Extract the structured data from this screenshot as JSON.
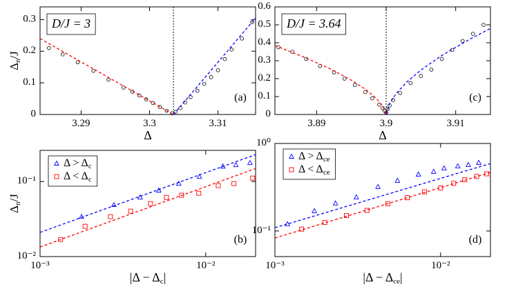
{
  "chart_data": [
    {
      "type": "scatter",
      "panel_label": "(a)",
      "annotation": "D/J = 3",
      "x_label": "Δ",
      "y_label": "Δn/J",
      "xscale": "linear",
      "yscale": "linear",
      "xlim": [
        3.284,
        3.3155
      ],
      "ylim": [
        0,
        0.34
      ],
      "xticks": [
        3.29,
        3.3,
        3.31
      ],
      "yticks": [
        0,
        0.1,
        0.2,
        0.3
      ],
      "vline": 3.3035,
      "series": [
        {
          "type": "scatter",
          "marker": "circle",
          "color": "#000000",
          "x": [
            3.2853,
            3.2873,
            3.2895,
            3.2918,
            3.294,
            3.2962,
            3.2975,
            3.2985,
            3.2995,
            3.3005,
            3.3015,
            3.3025,
            3.3033,
            3.3038,
            3.3045,
            3.3052,
            3.306,
            3.307,
            3.308,
            3.309,
            3.31,
            3.311,
            3.312,
            3.3135,
            3.315
          ],
          "values": [
            0.21,
            0.19,
            0.165,
            0.138,
            0.11,
            0.085,
            0.072,
            0.06,
            0.048,
            0.036,
            0.024,
            0.012,
            0.004,
            0.008,
            0.02,
            0.038,
            0.055,
            0.075,
            0.097,
            0.118,
            0.14,
            0.175,
            0.205,
            0.24,
            0.292
          ]
        },
        {
          "type": "line",
          "line_style": "dashed",
          "color": "#ff0000",
          "x": [
            3.284,
            3.3035
          ],
          "values": [
            0.24,
            0
          ]
        },
        {
          "type": "line",
          "line_style": "dashed",
          "color": "#0000ff",
          "x": [
            3.3035,
            3.3155
          ],
          "values": [
            0,
            0.305
          ]
        }
      ]
    },
    {
      "type": "scatter",
      "panel_label": "(c)",
      "annotation": "D/J = 3.64",
      "x_label": "Δ",
      "xscale": "linear",
      "yscale": "linear",
      "xlim": [
        3.884,
        3.915
      ],
      "ylim": [
        0,
        0.6
      ],
      "xticks": [
        3.89,
        3.9,
        3.91
      ],
      "yticks": [
        0,
        0.1,
        0.2,
        0.3,
        0.4,
        0.5,
        0.6
      ],
      "vline": 3.9,
      "series": [
        {
          "type": "scatter",
          "marker": "circle",
          "color": "#000000",
          "x": [
            3.8845,
            3.8865,
            3.8885,
            3.8905,
            3.8925,
            3.894,
            3.8955,
            3.897,
            3.898,
            3.899,
            3.8995,
            3.8998,
            3.9,
            3.9002,
            3.9005,
            3.901,
            3.902,
            3.9035,
            3.905,
            3.9065,
            3.908,
            3.9095,
            3.911,
            3.9125,
            3.914
          ],
          "values": [
            0.375,
            0.35,
            0.31,
            0.27,
            0.235,
            0.2,
            0.165,
            0.125,
            0.09,
            0.055,
            0.035,
            0.02,
            0.01,
            0.03,
            0.05,
            0.08,
            0.12,
            0.175,
            0.215,
            0.25,
            0.31,
            0.36,
            0.41,
            0.45,
            0.5
          ]
        },
        {
          "type": "line",
          "line_style": "dashed",
          "color": "#ff0000",
          "x": [
            3.884,
            3.888,
            3.892,
            3.895,
            3.897,
            3.8985,
            3.8995,
            3.9
          ],
          "values": [
            0.385,
            0.323,
            0.254,
            0.191,
            0.141,
            0.093,
            0.048,
            0
          ]
        },
        {
          "type": "line",
          "line_style": "dashed",
          "color": "#0000ff",
          "x": [
            3.9,
            3.9005,
            3.9015,
            3.903,
            3.905,
            3.908,
            3.912,
            3.915
          ],
          "values": [
            0,
            0.062,
            0.12,
            0.182,
            0.248,
            0.329,
            0.419,
            0.48
          ]
        }
      ]
    },
    {
      "type": "scatter",
      "panel_label": "(b)",
      "x_label": "|Δ − Δc|",
      "y_label": "Δn/J",
      "xscale": "log",
      "yscale": "log",
      "xlim": [
        0.001,
        0.02
      ],
      "ylim": [
        0.01,
        0.26
      ],
      "xticks": [
        {
          "value": 0.001,
          "label": "10⁻³"
        },
        {
          "value": 0.01,
          "label": "10⁻²"
        }
      ],
      "yticks": [
        {
          "value": 0.01,
          "label": "10⁻²"
        },
        {
          "value": 0.1,
          "label": "10⁻¹"
        }
      ],
      "legend": "upper left",
      "series": [
        {
          "type": "scatter",
          "name": "Δ > Δc",
          "marker": "triangle",
          "color": "#0000ff",
          "x": [
            0.00178,
            0.00279,
            0.00402,
            0.00521,
            0.00688,
            0.00917,
            0.0127,
            0.0152,
            0.0185
          ],
          "values": [
            0.034,
            0.0488,
            0.0615,
            0.076,
            0.0938,
            0.116,
            0.159,
            0.166,
            0.177
          ]
        },
        {
          "type": "scatter",
          "name": "Δ < Δc",
          "marker": "square",
          "color": "#ff0000",
          "x": [
            0.00133,
            0.00187,
            0.00266,
            0.00352,
            0.00464,
            0.00579,
            0.00715,
            0.00908,
            0.0119,
            0.0148,
            0.0192
          ],
          "values": [
            0.0169,
            0.0253,
            0.034,
            0.0403,
            0.0508,
            0.0615,
            0.0656,
            0.0698,
            0.0881,
            0.0938,
            0.111
          ]
        },
        {
          "type": "line",
          "line_style": "dashed",
          "color": "#0000ff",
          "x": [
            0.001,
            0.02
          ],
          "values": [
            0.021,
            0.228
          ]
        },
        {
          "type": "line",
          "line_style": "dashed",
          "color": "#ff0000",
          "x": [
            0.001,
            0.02
          ],
          "values": [
            0.0134,
            0.149
          ]
        }
      ]
    },
    {
      "type": "scatter",
      "panel_label": "(d)",
      "x_label": "|Δ − Δce|",
      "xscale": "log",
      "yscale": "log",
      "xlim": [
        0.001,
        0.02
      ],
      "ylim": [
        0.051,
        1
      ],
      "xticks": [
        {
          "value": 0.001,
          "label": "10⁻³"
        },
        {
          "value": 0.01,
          "label": "10⁻²"
        }
      ],
      "yticks": [
        {
          "value": 0.1,
          "label": "10⁻¹"
        },
        {
          "value": 1,
          "label": "10⁰"
        }
      ],
      "legend": "upper left",
      "series": [
        {
          "type": "scatter",
          "name": "Δ > Δce",
          "marker": "triangle",
          "color": "#0000ff",
          "x": [
            0.00119,
            0.00173,
            0.00232,
            0.0031,
            0.00419,
            0.00549,
            0.00734,
            0.00908,
            0.0105,
            0.0127,
            0.0147,
            0.017
          ],
          "values": [
            0.12,
            0.169,
            0.207,
            0.243,
            0.319,
            0.376,
            0.443,
            0.476,
            0.521,
            0.55,
            0.57,
            0.603
          ]
        },
        {
          "type": "scatter",
          "name": "Δ < Δce",
          "marker": "square",
          "color": "#ff0000",
          "x": [
            0.00145,
            0.002,
            0.0027,
            0.0036,
            0.0048,
            0.0063,
            0.008,
            0.01,
            0.012,
            0.014,
            0.0165,
            0.019
          ],
          "values": [
            0.105,
            0.125,
            0.15,
            0.172,
            0.205,
            0.24,
            0.28,
            0.31,
            0.35,
            0.385,
            0.42,
            0.45
          ]
        },
        {
          "type": "line",
          "line_style": "dashed",
          "color": "#0000ff",
          "x": [
            0.001,
            0.02
          ],
          "values": [
            0.109,
            0.59
          ]
        },
        {
          "type": "line",
          "line_style": "dashed",
          "color": "#ff0000",
          "x": [
            0.001,
            0.02
          ],
          "values": [
            0.083,
            0.467
          ]
        }
      ]
    }
  ]
}
